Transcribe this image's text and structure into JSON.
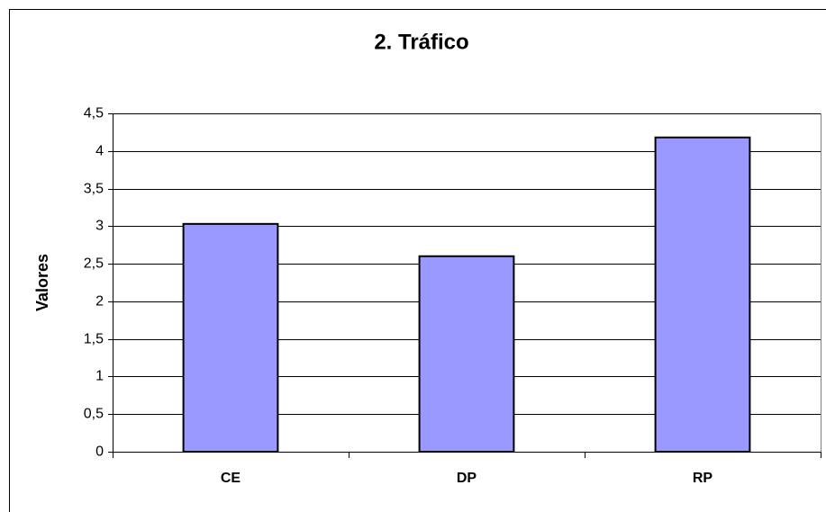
{
  "chart_data": {
    "type": "bar",
    "title": "2. Tráfico",
    "y_label": "Valores",
    "categories": [
      "CE",
      "DP",
      "RP"
    ],
    "values": [
      3.03,
      2.6,
      4.18
    ],
    "color": "#9999ff",
    "ylim": [
      0,
      4.5
    ],
    "yticks": [
      0,
      {
        "value": 0.5,
        "label": "0,5"
      },
      1,
      {
        "value": 1.5,
        "label": "1,5"
      },
      2,
      {
        "value": 2.5,
        "label": "2,5"
      },
      3,
      {
        "value": 3.5,
        "label": "3,5"
      },
      4,
      {
        "value": 4.5,
        "label": "4,5"
      }
    ],
    "grid": true
  }
}
